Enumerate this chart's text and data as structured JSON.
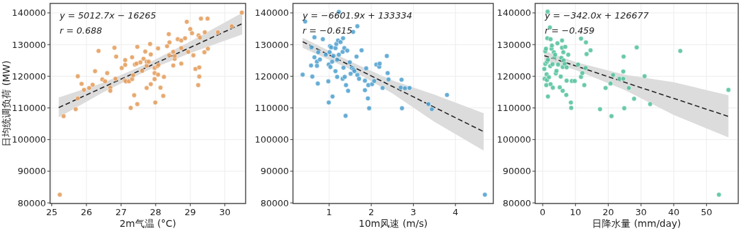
{
  "chart_data": [
    {
      "type": "scatter",
      "xlabel": "2m气温 (°C)",
      "ylabel": "日均统调负荷 (MW)",
      "xlim": [
        24.95,
        30.6
      ],
      "xticks": [
        25,
        26,
        27,
        28,
        29,
        30
      ],
      "ylim": [
        79800,
        143000
      ],
      "yticks": [
        80000,
        90000,
        100000,
        110000,
        120000,
        130000,
        140000
      ],
      "grid": true,
      "marker": "circle",
      "annotations": [
        "y = 5012.7x − 16265",
        "r = 0.688"
      ],
      "series": [
        {
          "type": "scatter",
          "color": "#e39a57",
          "x": [
            25.23,
            25.34,
            25.69,
            25.75,
            25.75,
            25.86,
            25.93,
            26.08,
            26.18,
            26.25,
            26.35,
            26.46,
            26.54,
            26.6,
            26.69,
            26.69,
            26.81,
            26.84,
            26.86,
            27.02,
            27.12,
            27.12,
            27.11,
            27.14,
            27.23,
            27.28,
            27.32,
            27.32,
            27.35,
            27.38,
            27.4,
            27.45,
            27.47,
            27.47,
            27.56,
            27.61,
            27.7,
            27.65,
            27.74,
            27.74,
            27.74,
            27.8,
            27.84,
            27.86,
            27.86,
            27.97,
            27.97,
            27.97,
            27.99,
            28.05,
            28.07,
            28.07,
            28.08,
            28.14,
            28.22,
            28.24,
            28.33,
            28.38,
            28.39,
            28.4,
            28.51,
            28.51,
            28.55,
            28.55,
            28.64,
            28.74,
            28.74,
            28.74,
            28.85,
            28.9,
            29.0,
            29.05,
            28.94,
            29.09,
            29.15,
            29.24,
            29.26,
            29.26,
            29.23,
            29.28,
            29.31,
            29.41,
            29.42,
            29.5,
            29.51,
            29.8,
            30.2,
            30.49
          ],
          "values": [
            82600,
            107400,
            109600,
            120000,
            113000,
            117600,
            115700,
            116300,
            117300,
            121600,
            128000,
            119000,
            118400,
            121000,
            116400,
            115400,
            129000,
            119200,
            126200,
            122600,
            125100,
            123600,
            118700,
            118400,
            118400,
            110000,
            126000,
            119100,
            120300,
            114000,
            123700,
            124000,
            129300,
            111200,
            124400,
            121700,
            127800,
            125500,
            123300,
            124600,
            116300,
            124600,
            130200,
            126900,
            117500,
            122600,
            121000,
            119100,
            111700,
            123200,
            128800,
            120500,
            123600,
            116400,
            113800,
            119800,
            129500,
            133300,
            126600,
            130700,
            123400,
            127700,
            125500,
            126400,
            131700,
            131300,
            128900,
            124000,
            132000,
            137200,
            134900,
            133600,
            127700,
            126600,
            122300,
            132900,
            122800,
            119900,
            117200,
            132200,
            138200,
            127600,
            133900,
            138200,
            128700,
            133900,
            135800,
            140100
          ]
        },
        {
          "type": "line",
          "color": "#222222",
          "line_style": "dashed",
          "marker": "none",
          "x": [
            25.2,
            26.5,
            27.8,
            29,
            30.5
          ],
          "values": [
            110100,
            116600,
            123100,
            129100,
            136600
          ],
          "lower": [
            107000,
            115000,
            122000,
            127300,
            133200
          ],
          "upper": [
            113300,
            118000,
            124200,
            131000,
            140000
          ]
        }
      ]
    },
    {
      "type": "scatter",
      "xlabel": "10m风速 (m/s)",
      "xlim": [
        0.14,
        4.9
      ],
      "xticks": [
        1,
        2,
        3,
        4
      ],
      "ylim": [
        79800,
        143000
      ],
      "yticks": [
        80000,
        90000,
        100000,
        110000,
        120000,
        130000,
        140000
      ],
      "grid": true,
      "marker": "circle",
      "annotations": [
        "y = −6601.9x + 133334",
        "r = −0.615"
      ],
      "series": [
        {
          "type": "scatter",
          "color": "#4b9fcf",
          "x": [
            0.37,
            0.43,
            0.57,
            0.58,
            0.6,
            0.65,
            0.65,
            0.71,
            0.71,
            0.73,
            0.74,
            0.78,
            0.85,
            0.92,
            0.99,
            0.98,
            0.99,
            1.01,
            1.02,
            1.03,
            1.05,
            1.07,
            1.08,
            1.1,
            1.15,
            1.15,
            1.17,
            1.19,
            1.19,
            1.21,
            1.23,
            1.23,
            1.27,
            1.32,
            1.32,
            1.33,
            1.34,
            1.36,
            1.37,
            1.39,
            1.4,
            1.43,
            1.45,
            1.49,
            1.51,
            1.54,
            1.58,
            1.57,
            1.6,
            1.67,
            1.65,
            1.67,
            1.71,
            1.77,
            1.85,
            1.85,
            1.88,
            1.92,
            1.93,
            1.95,
            2.02,
            2.07,
            2.12,
            2.19,
            2.2,
            2.27,
            2.37,
            2.39,
            2.41,
            2.7,
            2.72,
            2.73,
            2.8,
            2.91,
            3.36,
            3.44,
            3.8,
            4.7
          ],
          "values": [
            120500,
            137300,
            123400,
            129100,
            119900,
            132300,
            126000,
            124600,
            123300,
            117700,
            127600,
            125300,
            131700,
            126800,
            123700,
            118400,
            111700,
            127600,
            129500,
            122900,
            129100,
            124600,
            113600,
            126400,
            121600,
            128900,
            130200,
            125200,
            119800,
            131300,
            126800,
            140300,
            130800,
            127700,
            119200,
            132000,
            122700,
            128900,
            119800,
            107500,
            117200,
            128100,
            115400,
            124400,
            120800,
            122600,
            122100,
            134000,
            121600,
            135800,
            126200,
            120400,
            119200,
            128200,
            115600,
            118600,
            122500,
            113000,
            117200,
            109900,
            117500,
            118500,
            123700,
            123000,
            124000,
            116300,
            126400,
            121000,
            119000,
            116400,
            118900,
            109900,
            116200,
            116300,
            111200,
            109600,
            114100,
            82600
          ]
        },
        {
          "type": "line",
          "color": "#222222",
          "line_style": "dashed",
          "marker": "none",
          "x": [
            0.37,
            1.5,
            2.5,
            3.5,
            4.67
          ],
          "values": [
            130900,
            123400,
            116800,
            110200,
            102500
          ],
          "lower": [
            129000,
            122200,
            114600,
            105600,
            96500
          ],
          "upper": [
            132200,
            124700,
            118700,
            114200,
            108300
          ]
        }
      ]
    },
    {
      "type": "scatter",
      "xlabel": "日降水量 (mm/day)",
      "xlim": [
        -2.3,
        59.7
      ],
      "xticks": [
        0,
        10,
        20,
        30,
        40,
        50
      ],
      "ylim": [
        79800,
        143000
      ],
      "yticks": [
        80000,
        90000,
        100000,
        110000,
        120000,
        130000,
        140000
      ],
      "grid": true,
      "marker": "circle",
      "annotations": [
        "y = −342.0x + 126677",
        "r = −0.459"
      ],
      "series": [
        {
          "type": "scatter",
          "color": "#4fbf99",
          "x": [
            0.5,
            0.6,
            0.8,
            0.8,
            1.0,
            1.1,
            1.2,
            1.3,
            1.3,
            1.4,
            1.5,
            1.6,
            1.6,
            1.9,
            2.2,
            2.3,
            2.4,
            2.4,
            2.7,
            2.8,
            3.0,
            3.1,
            3.4,
            3.6,
            3.8,
            4.0,
            4.2,
            4.5,
            4.7,
            5.2,
            5.5,
            5.7,
            5.9,
            5.9,
            6.1,
            6.1,
            6.3,
            6.4,
            6.7,
            6.9,
            7.2,
            7.3,
            7.3,
            7.8,
            8.6,
            8.7,
            8.9,
            9.8,
            10.8,
            11.7,
            11.7,
            12.1,
            12.7,
            13.1,
            13.2,
            13.4,
            14.6,
            17.5,
            19.2,
            20.7,
            21.0,
            21.5,
            23.4,
            24.6,
            24.6,
            24.7,
            24.9,
            26.3,
            27.9,
            28.7,
            31.1,
            32.8,
            42.0,
            53.8,
            56.7
          ],
          "values": [
            122300,
            119200,
            123900,
            127900,
            128700,
            117200,
            120600,
            118800,
            124600,
            132000,
            140400,
            113600,
            125200,
            119700,
            135400,
            123200,
            131700,
            117500,
            128700,
            129700,
            123800,
            116400,
            127600,
            126000,
            126800,
            120900,
            121700,
            130400,
            123700,
            116500,
            119900,
            125800,
            131300,
            129000,
            115400,
            122900,
            127600,
            125000,
            123900,
            129300,
            114100,
            122800,
            118600,
            126800,
            111700,
            110000,
            118500,
            118500,
            123700,
            131900,
            119800,
            121000,
            117200,
            122600,
            130700,
            127000,
            128200,
            109600,
            116300,
            117700,
            107400,
            120400,
            119200,
            121500,
            119200,
            126200,
            109900,
            116300,
            112900,
            129100,
            120000,
            111200,
            128000,
            82600,
            115700
          ]
        },
        {
          "type": "line",
          "color": "#222222",
          "line_style": "dashed",
          "marker": "none",
          "x": [
            0.5,
            10,
            25,
            40,
            56.7
          ],
          "values": [
            126500,
            123300,
            118100,
            113000,
            107300
          ],
          "lower": [
            125000,
            122000,
            115700,
            107800,
            100700
          ],
          "upper": [
            128000,
            124500,
            120500,
            118100,
            114000
          ]
        }
      ]
    }
  ]
}
